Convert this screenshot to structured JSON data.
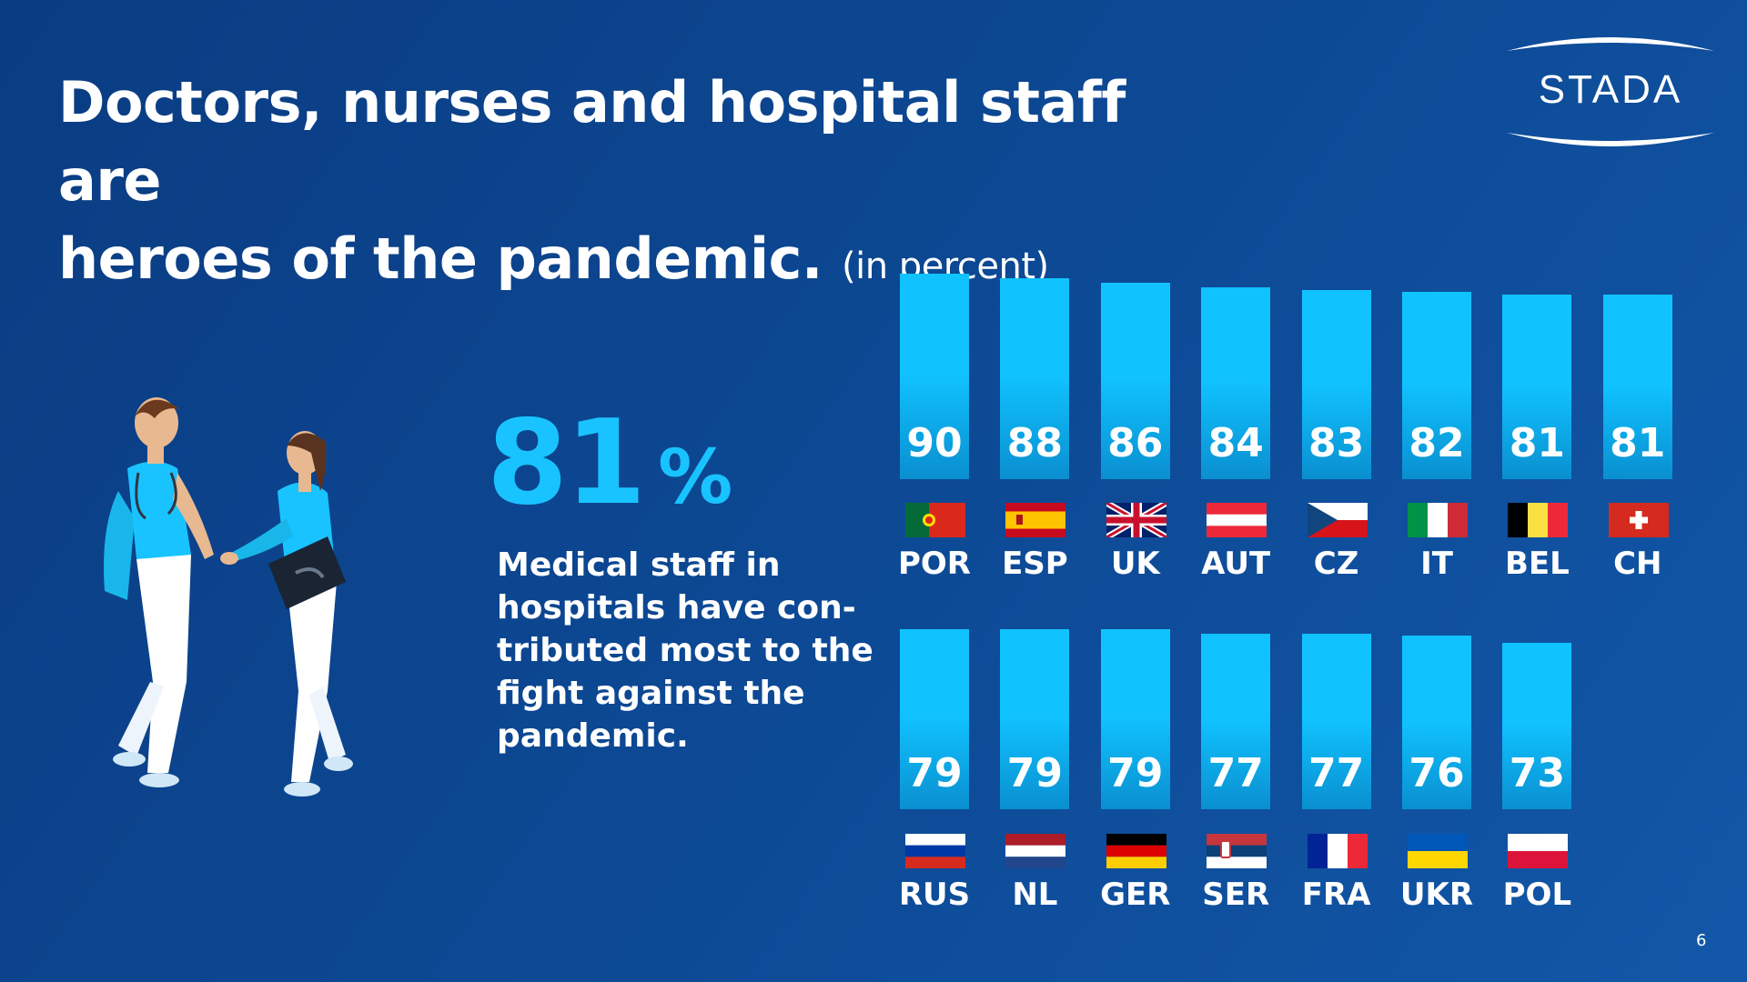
{
  "title": {
    "line1": "Doctors, nurses and hospital staff are",
    "line2": "heroes of the pandemic.",
    "unit": "(in percent)"
  },
  "logo": {
    "text": "STADA"
  },
  "headline_stat": {
    "value": "81",
    "unit": "%"
  },
  "statement": "Medical staff in hospitals have con-tributed most to the fight against the pandemic.",
  "page_number": "6",
  "colors": {
    "background": "#0d4a96",
    "bar": "#10c3ff",
    "accent": "#19c3ff",
    "text": "#ffffff"
  },
  "chart_data": {
    "type": "bar",
    "categories": [
      "POR",
      "ESP",
      "UK",
      "AUT",
      "CZ",
      "IT",
      "BEL",
      "CH",
      "RUS",
      "NL",
      "GER",
      "SER",
      "FRA",
      "UKR",
      "POL"
    ],
    "values": [
      90,
      88,
      86,
      84,
      83,
      82,
      81,
      81,
      79,
      79,
      79,
      77,
      77,
      76,
      73
    ],
    "value_labels": [
      "90",
      "88",
      "86",
      "84",
      "83",
      "82",
      "81",
      "81",
      "79",
      "79",
      "79",
      "77",
      "77",
      "76",
      "73"
    ],
    "flag_icons": [
      "flag-portugal-icon",
      "flag-spain-icon",
      "flag-uk-icon",
      "flag-austria-icon",
      "flag-czech-icon",
      "flag-italy-icon",
      "flag-belgium-icon",
      "flag-switzerland-icon",
      "flag-russia-icon",
      "flag-netherlands-icon",
      "flag-germany-icon",
      "flag-serbia-icon",
      "flag-france-icon",
      "flag-ukraine-icon",
      "flag-poland-icon"
    ],
    "rows": [
      [
        "POR",
        "ESP",
        "UK",
        "AUT",
        "CZ",
        "IT",
        "BEL",
        "CH"
      ],
      [
        "RUS",
        "NL",
        "GER",
        "SER",
        "FRA",
        "UKR",
        "POL"
      ]
    ],
    "title": "",
    "xlabel": "",
    "ylabel": "",
    "grid": false
  }
}
